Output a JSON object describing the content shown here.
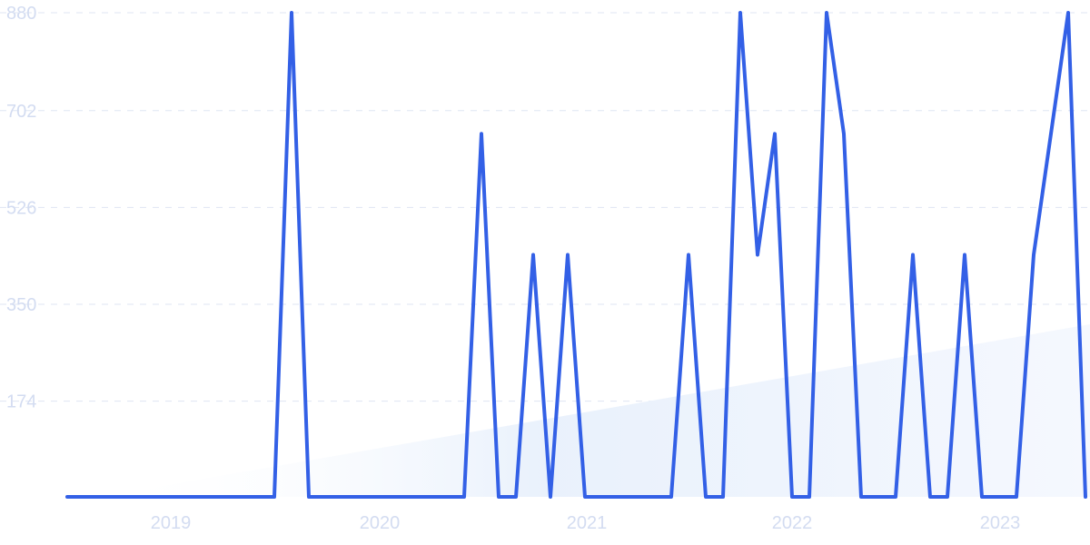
{
  "chart_data": {
    "type": "line",
    "title": "",
    "xlabel": "",
    "ylabel": "",
    "ylim": [
      0,
      880
    ],
    "y_ticks": [
      "880",
      "702",
      "526",
      "350",
      "174"
    ],
    "x_ticks": [
      "2019",
      "2020",
      "2021",
      "2022",
      "2023"
    ],
    "grid": true,
    "colors": {
      "line": "#3360e6",
      "area_light": "#eaf2fc",
      "tick": "#d3dcf1",
      "grid": "#dfe5f3"
    },
    "series": [
      {
        "values": [
          0,
          0,
          0,
          0,
          0,
          0,
          0,
          0,
          0,
          0,
          0,
          0,
          0,
          880,
          0,
          0,
          0,
          0,
          0,
          0,
          0,
          0,
          0,
          0,
          660,
          0,
          0,
          440,
          0,
          440,
          0,
          0,
          0,
          0,
          0,
          0,
          440,
          0,
          0,
          880,
          440,
          660,
          0,
          0,
          880,
          660,
          0,
          0,
          0,
          440,
          0,
          0,
          440,
          0,
          0,
          0,
          440,
          660,
          880,
          0
        ]
      }
    ]
  }
}
